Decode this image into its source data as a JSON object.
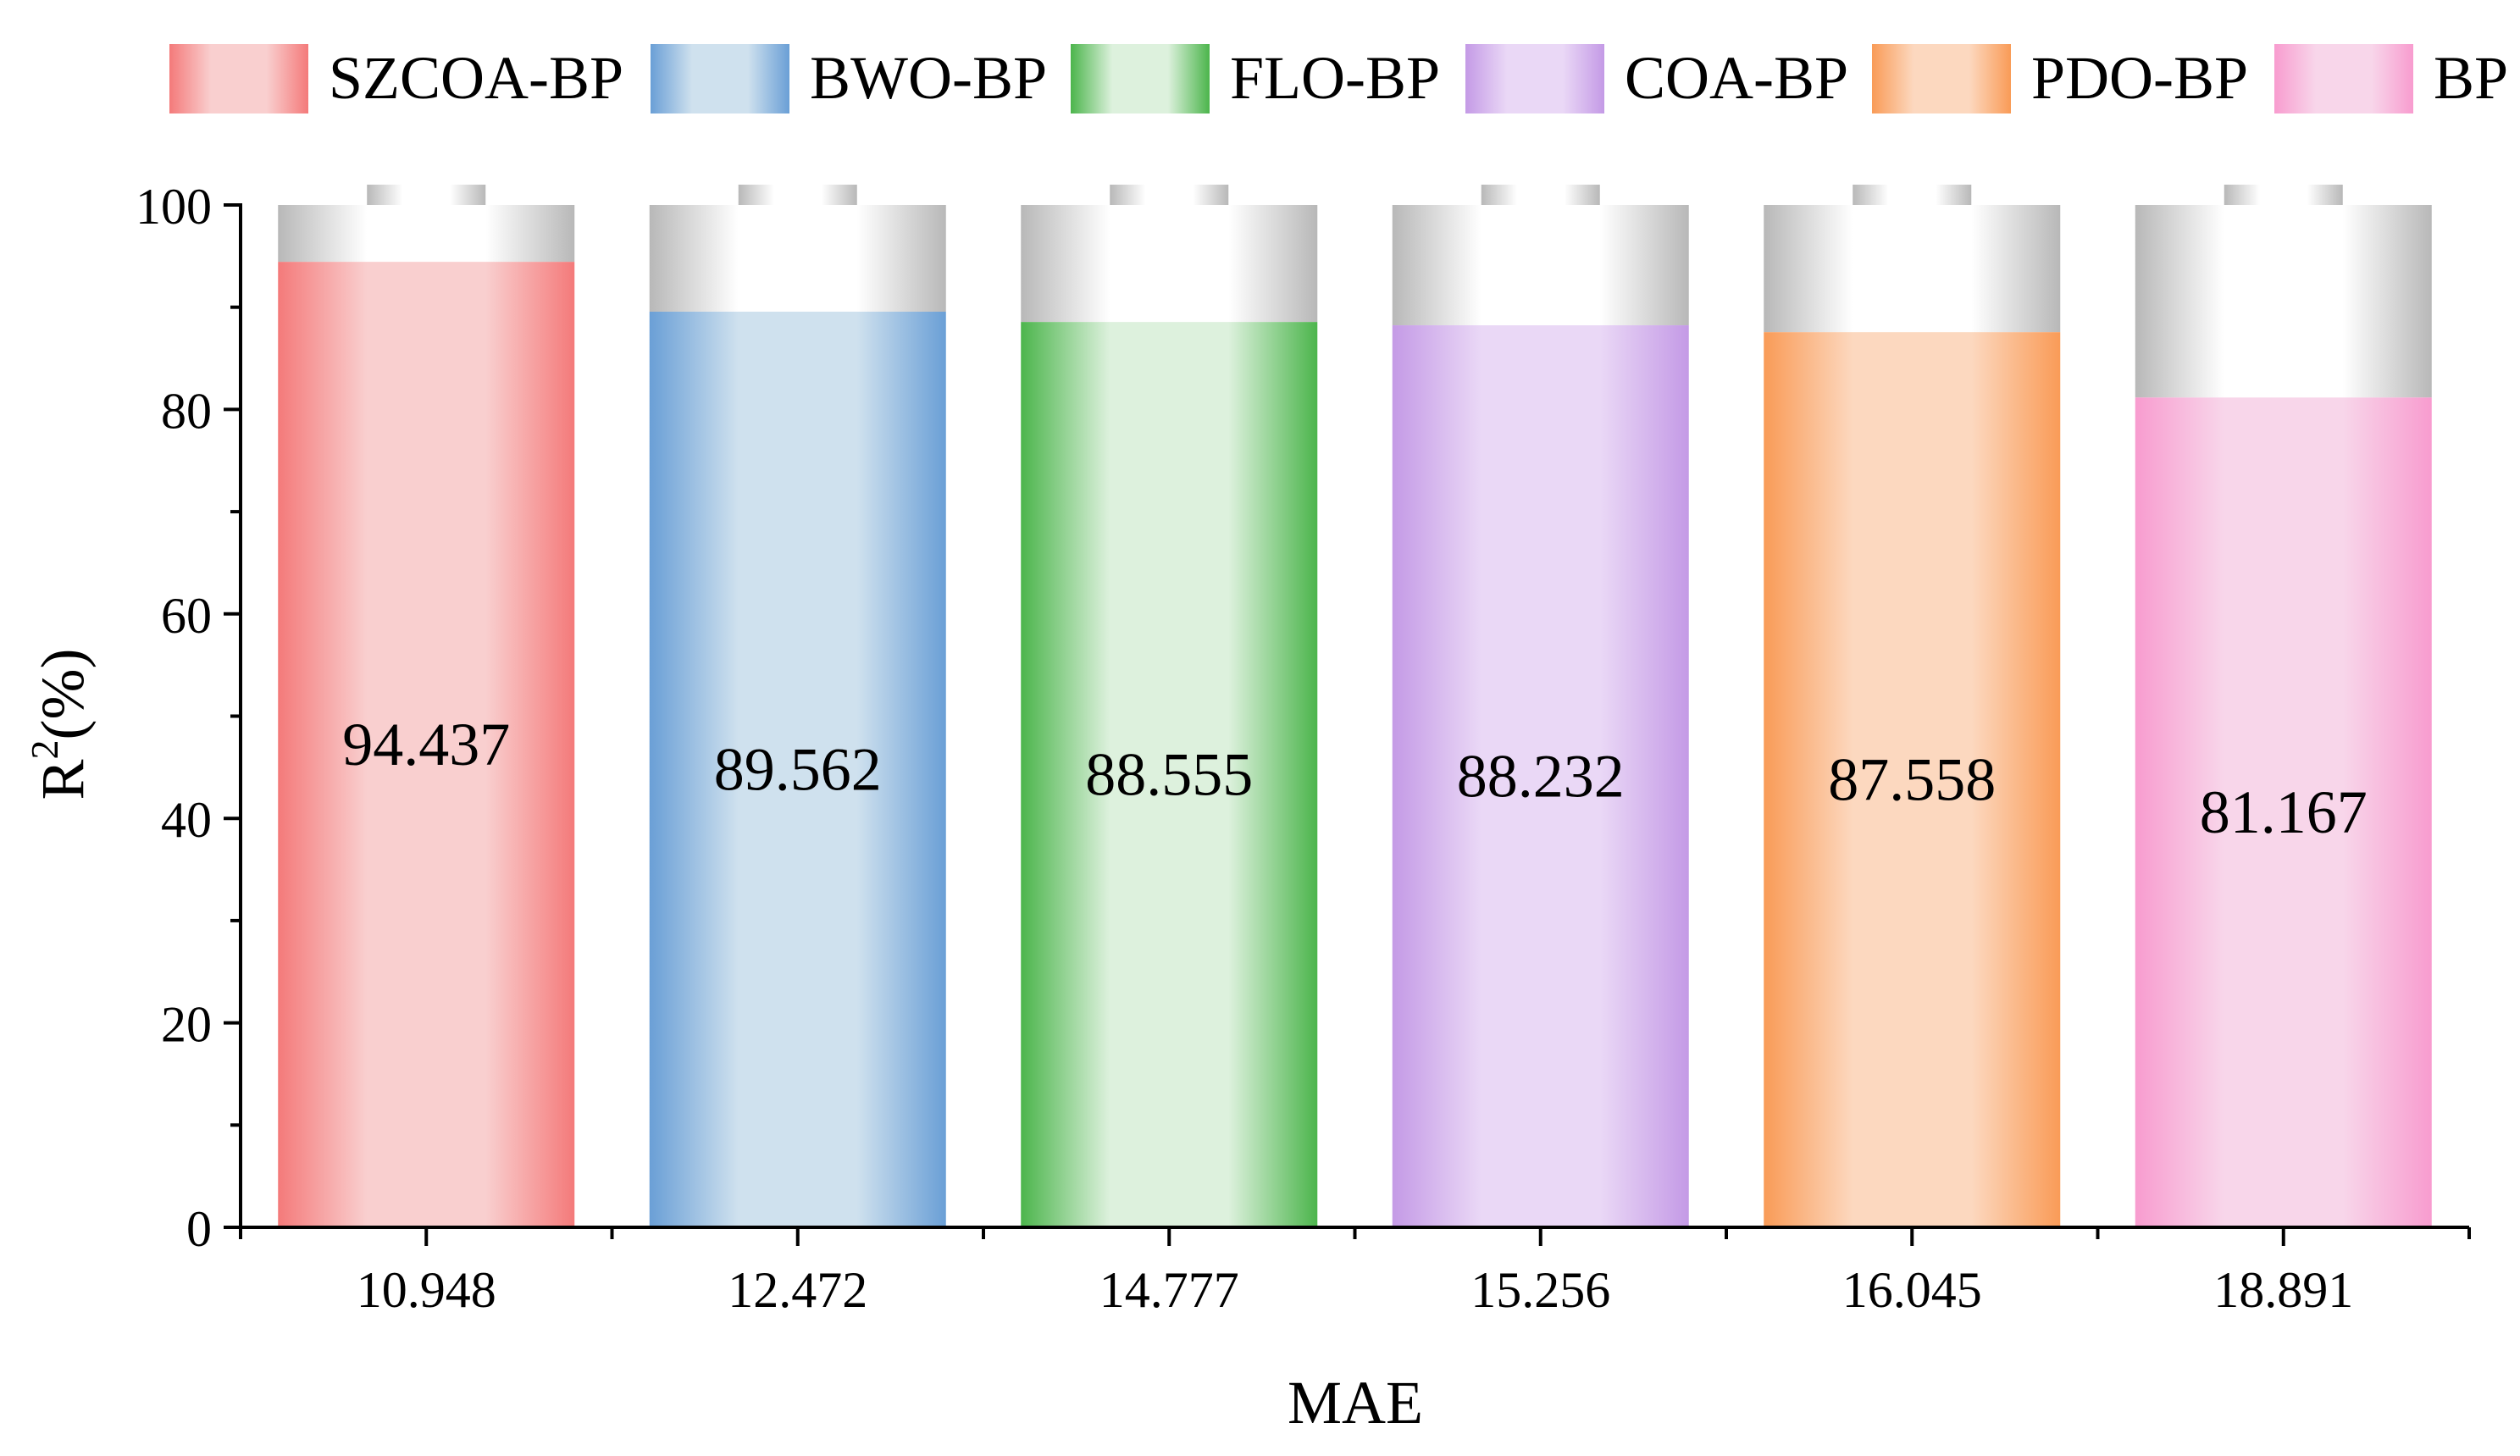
{
  "chart_data": {
    "type": "bar",
    "xlabel": "MAE",
    "ylabel_main": "R",
    "ylabel_sup": "2",
    "ylabel_suffix": "(%)",
    "ylim": [
      0,
      100
    ],
    "yticks": [
      0,
      20,
      40,
      60,
      80,
      100
    ],
    "categories": [
      "10.948",
      "12.472",
      "14.777",
      "15.256",
      "16.045",
      "18.891"
    ],
    "series": [
      {
        "name": "SZCOA-BP",
        "value": 94.437,
        "label": "94.437",
        "color": "#f47a7a",
        "light": "#f9cfcf"
      },
      {
        "name": "BWO-BP",
        "value": 89.562,
        "label": "89.562",
        "color": "#6a9fd6",
        "light": "#cfe1ee"
      },
      {
        "name": "FLO-BP",
        "value": 88.555,
        "label": "88.555",
        "color": "#4cb54c",
        "light": "#ddf1dd"
      },
      {
        "name": "COA-BP",
        "value": 88.232,
        "label": "88.232",
        "color": "#c49ae6",
        "light": "#ead8f6"
      },
      {
        "name": "PDO-BP",
        "value": 87.558,
        "label": "87.558",
        "color": "#f99b57",
        "light": "#fcd8bf"
      },
      {
        "name": "BP",
        "value": 81.167,
        "label": "81.167",
        "color": "#f89ccf",
        "light": "#f8d6ea"
      }
    ],
    "capacity_color": "#b8b8b8",
    "legend_position": "top",
    "grid": false
  }
}
